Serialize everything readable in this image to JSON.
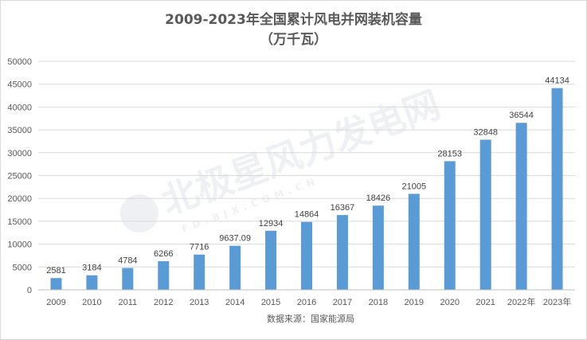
{
  "chart_data": {
    "type": "bar",
    "title_line1": "2009-2023年全国累计风电并网装机容量",
    "title_line2": "（万千瓦）",
    "categories": [
      "2009",
      "2010",
      "2011",
      "2012",
      "2013",
      "2014",
      "2015",
      "2016",
      "2017",
      "2018",
      "2019",
      "2020",
      "2021",
      "2022年",
      "2023年"
    ],
    "values": [
      2581,
      3184,
      4784,
      6266,
      7716,
      9637.09,
      12934,
      14864,
      16367,
      18426,
      21005,
      28153,
      32848,
      36544,
      44134
    ],
    "value_labels": [
      "2581",
      "3184",
      "4784",
      "6266",
      "7716",
      "9637.09",
      "12934",
      "14864",
      "16367",
      "18426",
      "21005",
      "28153",
      "32848",
      "36544",
      "44134"
    ],
    "ylim": [
      0,
      50000
    ],
    "yticks": [
      0,
      5000,
      10000,
      15000,
      20000,
      25000,
      30000,
      35000,
      40000,
      45000,
      50000
    ],
    "grid": true,
    "bar_color": "#5b9bd5",
    "xlabel": "数据来源：国家能源局",
    "ylabel": ""
  },
  "watermark": {
    "text": "北极星风力发电网",
    "sub": "FD.BJX.COM.CN"
  }
}
